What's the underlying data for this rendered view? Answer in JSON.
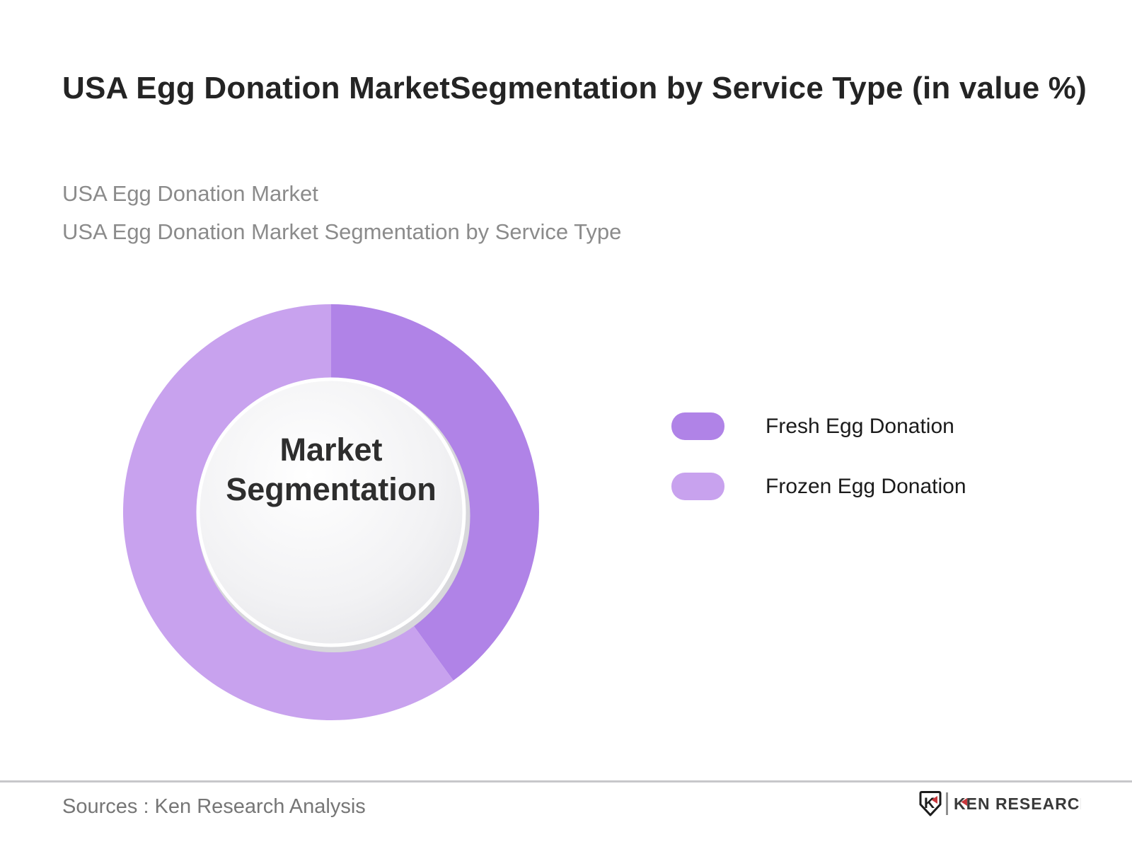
{
  "header": {
    "title": "USA Egg Donation MarketSegmentation by Service Type (in value %)",
    "subtitle_line1": "USA Egg Donation Market",
    "subtitle_line2": "USA Egg Donation Market Segmentation by Service Type"
  },
  "chart_data": {
    "type": "pie",
    "variant": "donut",
    "title": "USA Egg Donation MarketSegmentation by Service Type (in value %)",
    "center_label": "Market Segmentation",
    "unit": "value %",
    "start_angle_deg": 0,
    "direction": "clockwise",
    "values_shown_on_chart": false,
    "legend_position": "right",
    "segments": [
      {
        "label": "Fresh Egg Donation",
        "value": 40,
        "color": "#b083e7"
      },
      {
        "label": "Frozen Egg Donation",
        "value": 60,
        "color": "#c8a2ee"
      }
    ],
    "inner_circle": {
      "fill_start": "#ffffff",
      "fill_end": "#e4e4e8",
      "shadow": "#d7d7db"
    }
  },
  "footer": {
    "sources": "Sources : Ken Research Analysis",
    "logo": {
      "brand": "KEN RESEARCH",
      "icon_letter": "K",
      "red": "#c9373c",
      "dark": "#3a3a3a"
    }
  }
}
